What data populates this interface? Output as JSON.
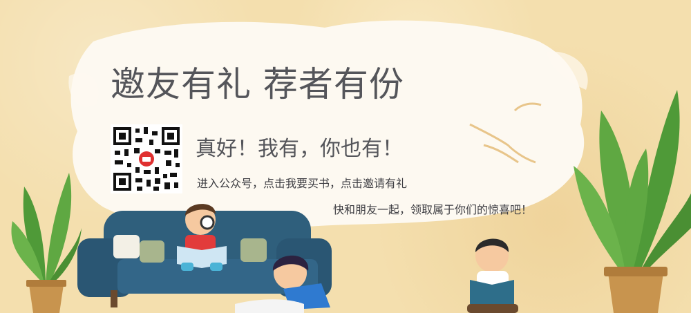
{
  "banner": {
    "title": "邀友有礼 荐者有份",
    "tagline": "真好！我有，你也有！",
    "instruction": "进入公众号，点击我要买书，点击邀请有礼",
    "invite_text": "快和朋友一起，领取属于你们的惊喜吧！",
    "qr_logo_icon": "shop-logo-icon",
    "colors": {
      "background": "#f4dfae",
      "title_text": "#54555a",
      "sofa": "#2f5f7c",
      "plant_leaf": "#5fa842",
      "pot": "#c8944e"
    }
  }
}
